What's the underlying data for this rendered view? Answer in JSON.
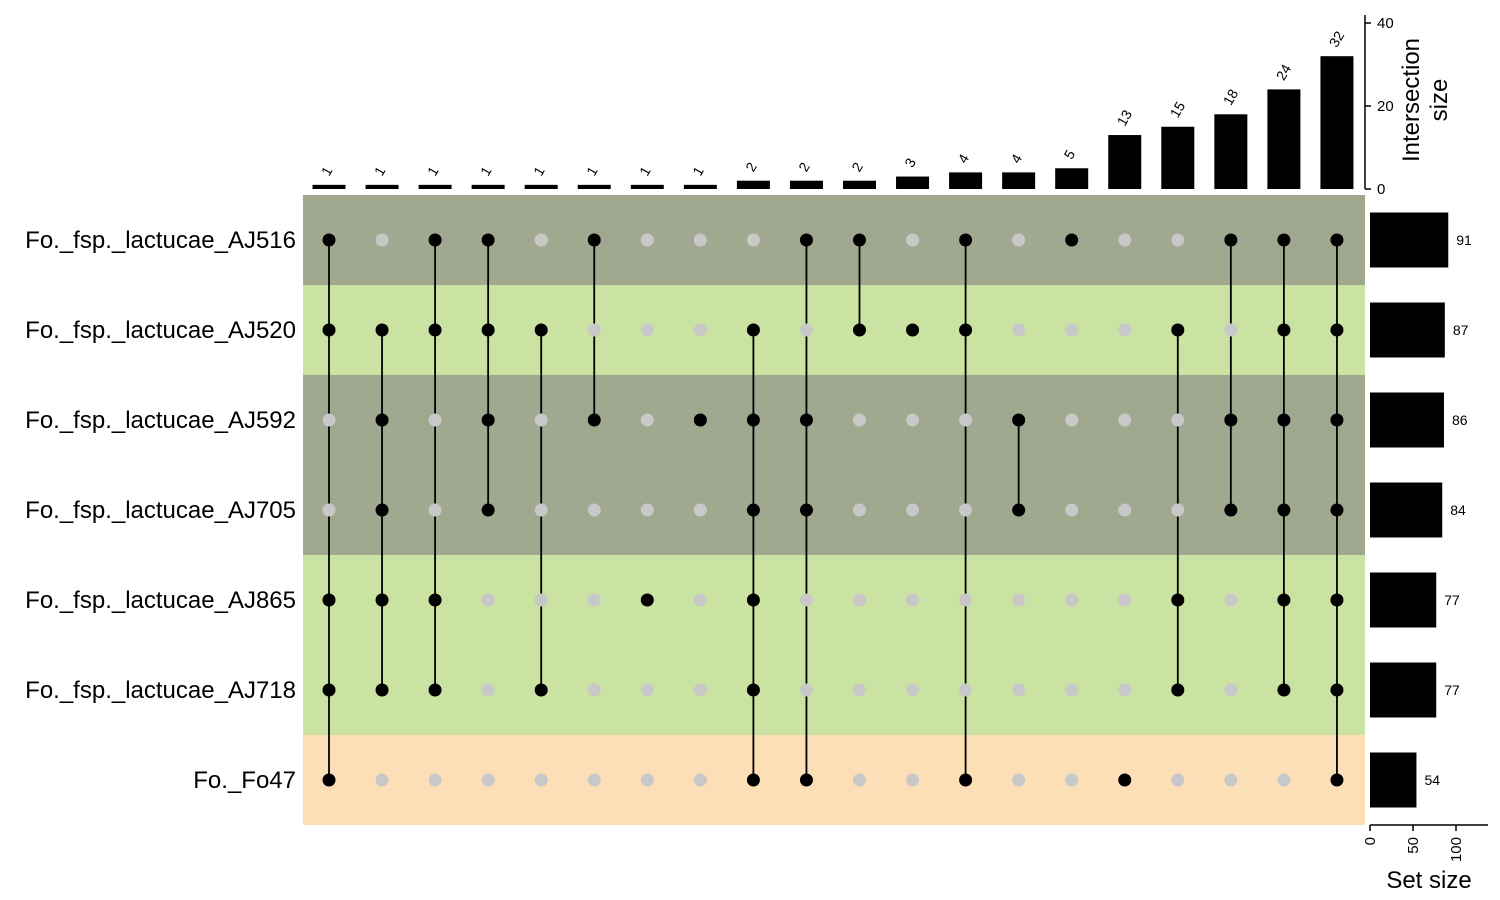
{
  "chart_data": {
    "type": "upset",
    "sets": [
      {
        "name": "Fo._fsp._lactucae_AJ516",
        "size": 91,
        "band_color": "#a0a890"
      },
      {
        "name": "Fo._fsp._lactucae_AJ520",
        "size": 87,
        "band_color": "#cae2a2"
      },
      {
        "name": "Fo._fsp._lactucae_AJ592",
        "size": 86,
        "band_color": "#a0a890"
      },
      {
        "name": "Fo._fsp._lactucae_AJ705",
        "size": 84,
        "band_color": "#a0a890"
      },
      {
        "name": "Fo._fsp._lactucae_AJ865",
        "size": 77,
        "band_color": "#cae2a2"
      },
      {
        "name": "Fo._fsp._lactucae_AJ718",
        "size": 77,
        "band_color": "#cae2a2"
      },
      {
        "name": "Fo._Fo47",
        "size": 54,
        "band_color": "#fddfb7"
      }
    ],
    "intersections": [
      {
        "size": 1,
        "members": [
          0,
          1,
          4,
          5,
          6
        ]
      },
      {
        "size": 1,
        "members": [
          1,
          2,
          3,
          4,
          5
        ]
      },
      {
        "size": 1,
        "members": [
          0,
          1,
          4,
          5
        ]
      },
      {
        "size": 1,
        "members": [
          0,
          1,
          2,
          3
        ]
      },
      {
        "size": 1,
        "members": [
          1,
          5
        ]
      },
      {
        "size": 1,
        "members": [
          0,
          2
        ]
      },
      {
        "size": 1,
        "members": [
          4
        ]
      },
      {
        "size": 1,
        "members": [
          2
        ]
      },
      {
        "size": 2,
        "members": [
          1,
          2,
          3,
          4,
          5,
          6
        ]
      },
      {
        "size": 2,
        "members": [
          0,
          2,
          3,
          6
        ]
      },
      {
        "size": 2,
        "members": [
          0,
          1
        ]
      },
      {
        "size": 3,
        "members": [
          1
        ]
      },
      {
        "size": 4,
        "members": [
          0,
          1,
          6
        ]
      },
      {
        "size": 4,
        "members": [
          2,
          3
        ]
      },
      {
        "size": 5,
        "members": [
          0
        ]
      },
      {
        "size": 13,
        "members": [
          6
        ]
      },
      {
        "size": 15,
        "members": [
          1,
          4,
          5
        ]
      },
      {
        "size": 18,
        "members": [
          0,
          2,
          3
        ]
      },
      {
        "size": 24,
        "members": [
          0,
          1,
          2,
          3,
          4,
          5
        ]
      },
      {
        "size": 32,
        "members": [
          0,
          1,
          2,
          3,
          4,
          5,
          6
        ]
      }
    ],
    "intersection_axis": {
      "title_lines": [
        "Intersection",
        "size"
      ],
      "ticks": [
        "0",
        "20",
        "40"
      ],
      "ylim": [
        0,
        40
      ]
    },
    "set_size_axis": {
      "title": "Set size",
      "ticks": [
        "0",
        "50",
        "100"
      ],
      "xlim": [
        0,
        100
      ]
    },
    "colors": {
      "dot_active": "#000000",
      "dot_inactive": "#c8c8c8",
      "bar": "#000000"
    }
  }
}
